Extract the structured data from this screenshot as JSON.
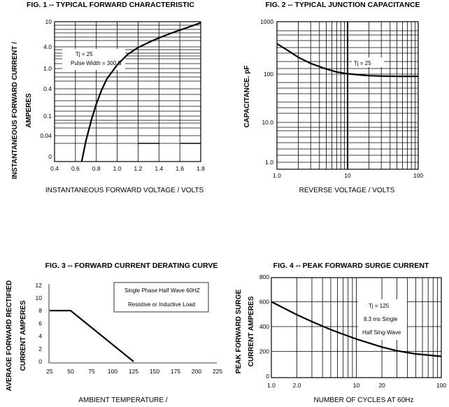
{
  "chart_data": [
    {
      "type": "line",
      "title": "FIG. 1  --  TYPICAL FORWARD CHARACTERISTIC",
      "xlabel": "INSTANTANEOUS FORWARD VOLTAGE / VOLTS",
      "ylabel": [
        "INSTANTANEOUS FORWARD CURRENT /",
        "AMPERES"
      ],
      "x_ticks": [
        "0.4",
        "0.6",
        "0.8",
        "1.0",
        "1.2",
        "1.4",
        "1.6",
        "1.8"
      ],
      "y_ticks": [
        "10",
        "4.0",
        "1.0",
        "0.4",
        "0.1",
        "0.04",
        "0"
      ],
      "xlim": [
        0.4,
        1.8
      ],
      "annotations": [
        "Tj = 25",
        "Pulse Width = 300  S"
      ],
      "series": [
        {
          "x": [
            0.66,
            0.7,
            0.75,
            0.8,
            0.85,
            0.9,
            1.0,
            1.1,
            1.2,
            1.3,
            1.4,
            1.5,
            1.6,
            1.7,
            1.8
          ],
          "y": [
            0.01,
            0.03,
            0.08,
            0.18,
            0.35,
            0.6,
            1.2,
            2.0,
            2.8,
            3.6,
            4.5,
            5.5,
            6.6,
            7.9,
            9.5
          ]
        }
      ]
    },
    {
      "type": "line",
      "title": "FIG. 2  --  TYPICAL JUNCTION CAPACITANCE",
      "xlabel": "REVERSE  VOLTAGE / VOLTS",
      "ylabel": "CAPACITANCE. pF",
      "x_ticks": [
        "1.0",
        "10",
        "100"
      ],
      "y_ticks": [
        "1000",
        "100",
        "10.0",
        "1.0"
      ],
      "xlim": [
        1,
        100
      ],
      "ylim": [
        1,
        1000
      ],
      "annotations": [
        "Tj = 25"
      ],
      "series": [
        {
          "x": [
            1,
            1.5,
            2,
            3,
            5,
            7,
            10,
            15,
            20,
            30,
            50,
            100
          ],
          "y": [
            380,
            270,
            210,
            160,
            125,
            110,
            102,
            96,
            93,
            91,
            90,
            90
          ]
        }
      ]
    },
    {
      "type": "line",
      "title": "FIG. 3 --  FORWARD CURRENT DERATING CURVE",
      "xlabel": "AMBIENT  TEMPERATURE /",
      "ylabel": [
        "AVERAGE FORWARD RECTIFIED",
        "CURRENT AMPERES"
      ],
      "x_ticks": [
        "25",
        "50",
        "75",
        "100",
        "125",
        "150",
        "175",
        "200",
        "225"
      ],
      "y_ticks": [
        "12",
        "10",
        "8",
        "6",
        "4",
        "2",
        "0"
      ],
      "xlim": [
        25,
        225
      ],
      "ylim": [
        0,
        12
      ],
      "annotations": [
        "Single  Phase Half Wave 60HZ",
        "Resistive  or  Inductive Load"
      ],
      "series": [
        {
          "x": [
            25,
            50,
            125
          ],
          "y": [
            8,
            8,
            0
          ]
        }
      ]
    },
    {
      "type": "line",
      "title": "FIG. 4 -- PEAK FORWARD SURGE  CURRENT",
      "xlabel": "NUMBER  OF  CYCLES  AT 60Hz",
      "ylabel": [
        "PEAK FORWARD SURGE",
        "CURRENT AMPERES"
      ],
      "x_ticks": [
        "1.0",
        "2.0",
        "10",
        "20",
        "100"
      ],
      "y_ticks": [
        "800",
        "600",
        "400",
        "200",
        "0"
      ],
      "xlim": [
        1,
        100
      ],
      "ylim": [
        0,
        800
      ],
      "annotations": [
        "Tj = 125",
        "8.3 ms  Single",
        "Half Sing-Wave"
      ],
      "series": [
        {
          "x": [
            1,
            2,
            3,
            5,
            10,
            20,
            30,
            50,
            100
          ],
          "y": [
            600,
            495,
            440,
            375,
            300,
            235,
            205,
            180,
            160
          ]
        }
      ]
    }
  ]
}
